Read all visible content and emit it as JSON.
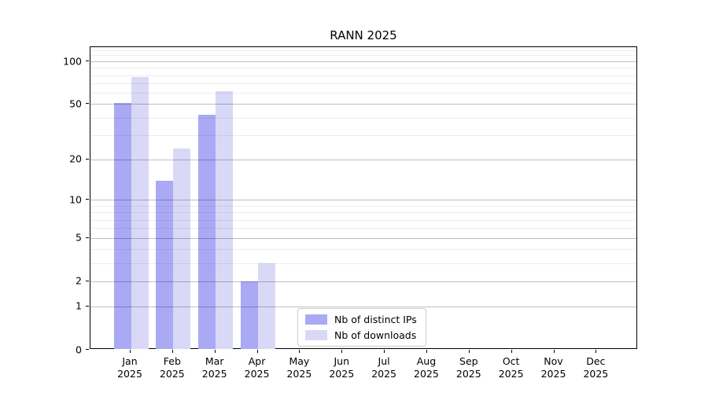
{
  "chart_data": {
    "type": "bar",
    "title": "RANN 2025",
    "x_axis": {
      "months": [
        {
          "month": "Jan",
          "year": "2025"
        },
        {
          "month": "Feb",
          "year": "2025"
        },
        {
          "month": "Mar",
          "year": "2025"
        },
        {
          "month": "Apr",
          "year": "2025"
        },
        {
          "month": "May",
          "year": "2025"
        },
        {
          "month": "Jun",
          "year": "2025"
        },
        {
          "month": "Jul",
          "year": "2025"
        },
        {
          "month": "Aug",
          "year": "2025"
        },
        {
          "month": "Sep",
          "year": "2025"
        },
        {
          "month": "Oct",
          "year": "2025"
        },
        {
          "month": "Nov",
          "year": "2025"
        },
        {
          "month": "Dec",
          "year": "2025"
        }
      ]
    },
    "y_axis": {
      "scale": "log1p",
      "ylim": [
        0,
        125
      ],
      "ticks": [
        {
          "label": "0",
          "value": 0
        },
        {
          "label": "1",
          "value": 1
        },
        {
          "label": "2",
          "value": 2
        },
        {
          "label": "5",
          "value": 5
        },
        {
          "label": "10",
          "value": 10
        },
        {
          "label": "20",
          "value": 20
        },
        {
          "label": "50",
          "value": 50
        },
        {
          "label": "100",
          "value": 100
        }
      ],
      "minor_ticks": [
        3,
        4,
        6,
        7,
        8,
        9,
        30,
        40,
        60,
        70,
        80,
        90,
        110,
        120
      ]
    },
    "series": [
      {
        "name": "Nb of distinct IPs",
        "color": "#a9a9f4",
        "values": [
          51,
          14,
          42,
          2,
          0,
          0,
          0,
          0,
          0,
          0,
          0,
          0
        ]
      },
      {
        "name": "Nb of downloads",
        "color": "#d9d9f7",
        "values": [
          78,
          24,
          62,
          3,
          0,
          0,
          0,
          0,
          0,
          0,
          0,
          0
        ]
      }
    ],
    "grid": true,
    "legend_position": "lower-center"
  }
}
